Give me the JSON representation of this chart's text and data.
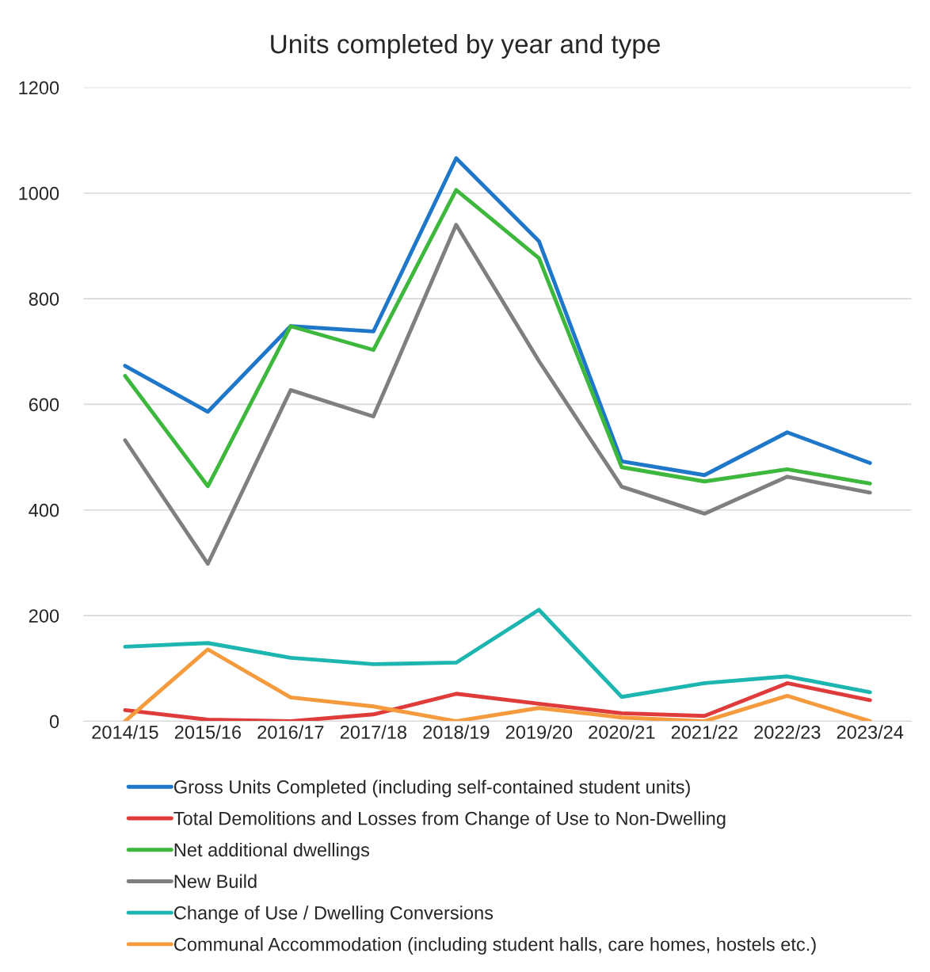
{
  "chart_data": {
    "type": "line",
    "title": "Units completed by year and type",
    "categories": [
      "2014/15",
      "2015/16",
      "2016/17",
      "2017/18",
      "2018/19",
      "2019/20",
      "2020/21",
      "2021/22",
      "2022/23",
      "2023/24"
    ],
    "series": [
      {
        "name": "Gross Units Completed (including self-contained student units)",
        "color": "#1f77c9",
        "values": [
          673,
          586,
          748,
          738,
          1066,
          909,
          492,
          466,
          547,
          489
        ]
      },
      {
        "name": "Total Demolitions and Losses from Change of Use to Non-Dwelling",
        "color": "#e03b3b",
        "values": [
          21,
          3,
          0,
          13,
          52,
          33,
          15,
          10,
          72,
          40
        ]
      },
      {
        "name": "Net additional dwellings",
        "color": "#3db83d",
        "values": [
          654,
          445,
          748,
          703,
          1006,
          877,
          481,
          454,
          477,
          450
        ]
      },
      {
        "name": "New Build",
        "color": "#7f7f7f",
        "values": [
          532,
          298,
          627,
          577,
          940,
          682,
          444,
          393,
          463,
          433
        ]
      },
      {
        "name": "Change of Use / Dwelling Conversions",
        "color": "#1cb5b0",
        "values": [
          141,
          148,
          120,
          108,
          111,
          211,
          46,
          72,
          85,
          55
        ]
      },
      {
        "name": "Communal Accommodation (including student halls, care homes, hostels etc.)",
        "color": "#f59a3d",
        "values": [
          0,
          136,
          45,
          28,
          0,
          25,
          7,
          0,
          48,
          0
        ]
      }
    ],
    "ylim": [
      0,
      1200
    ],
    "yticks": [
      0,
      200,
      400,
      600,
      800,
      1000,
      1200
    ],
    "grid": "y",
    "legend": "bottom",
    "marker": "none",
    "line_style": "solid"
  }
}
